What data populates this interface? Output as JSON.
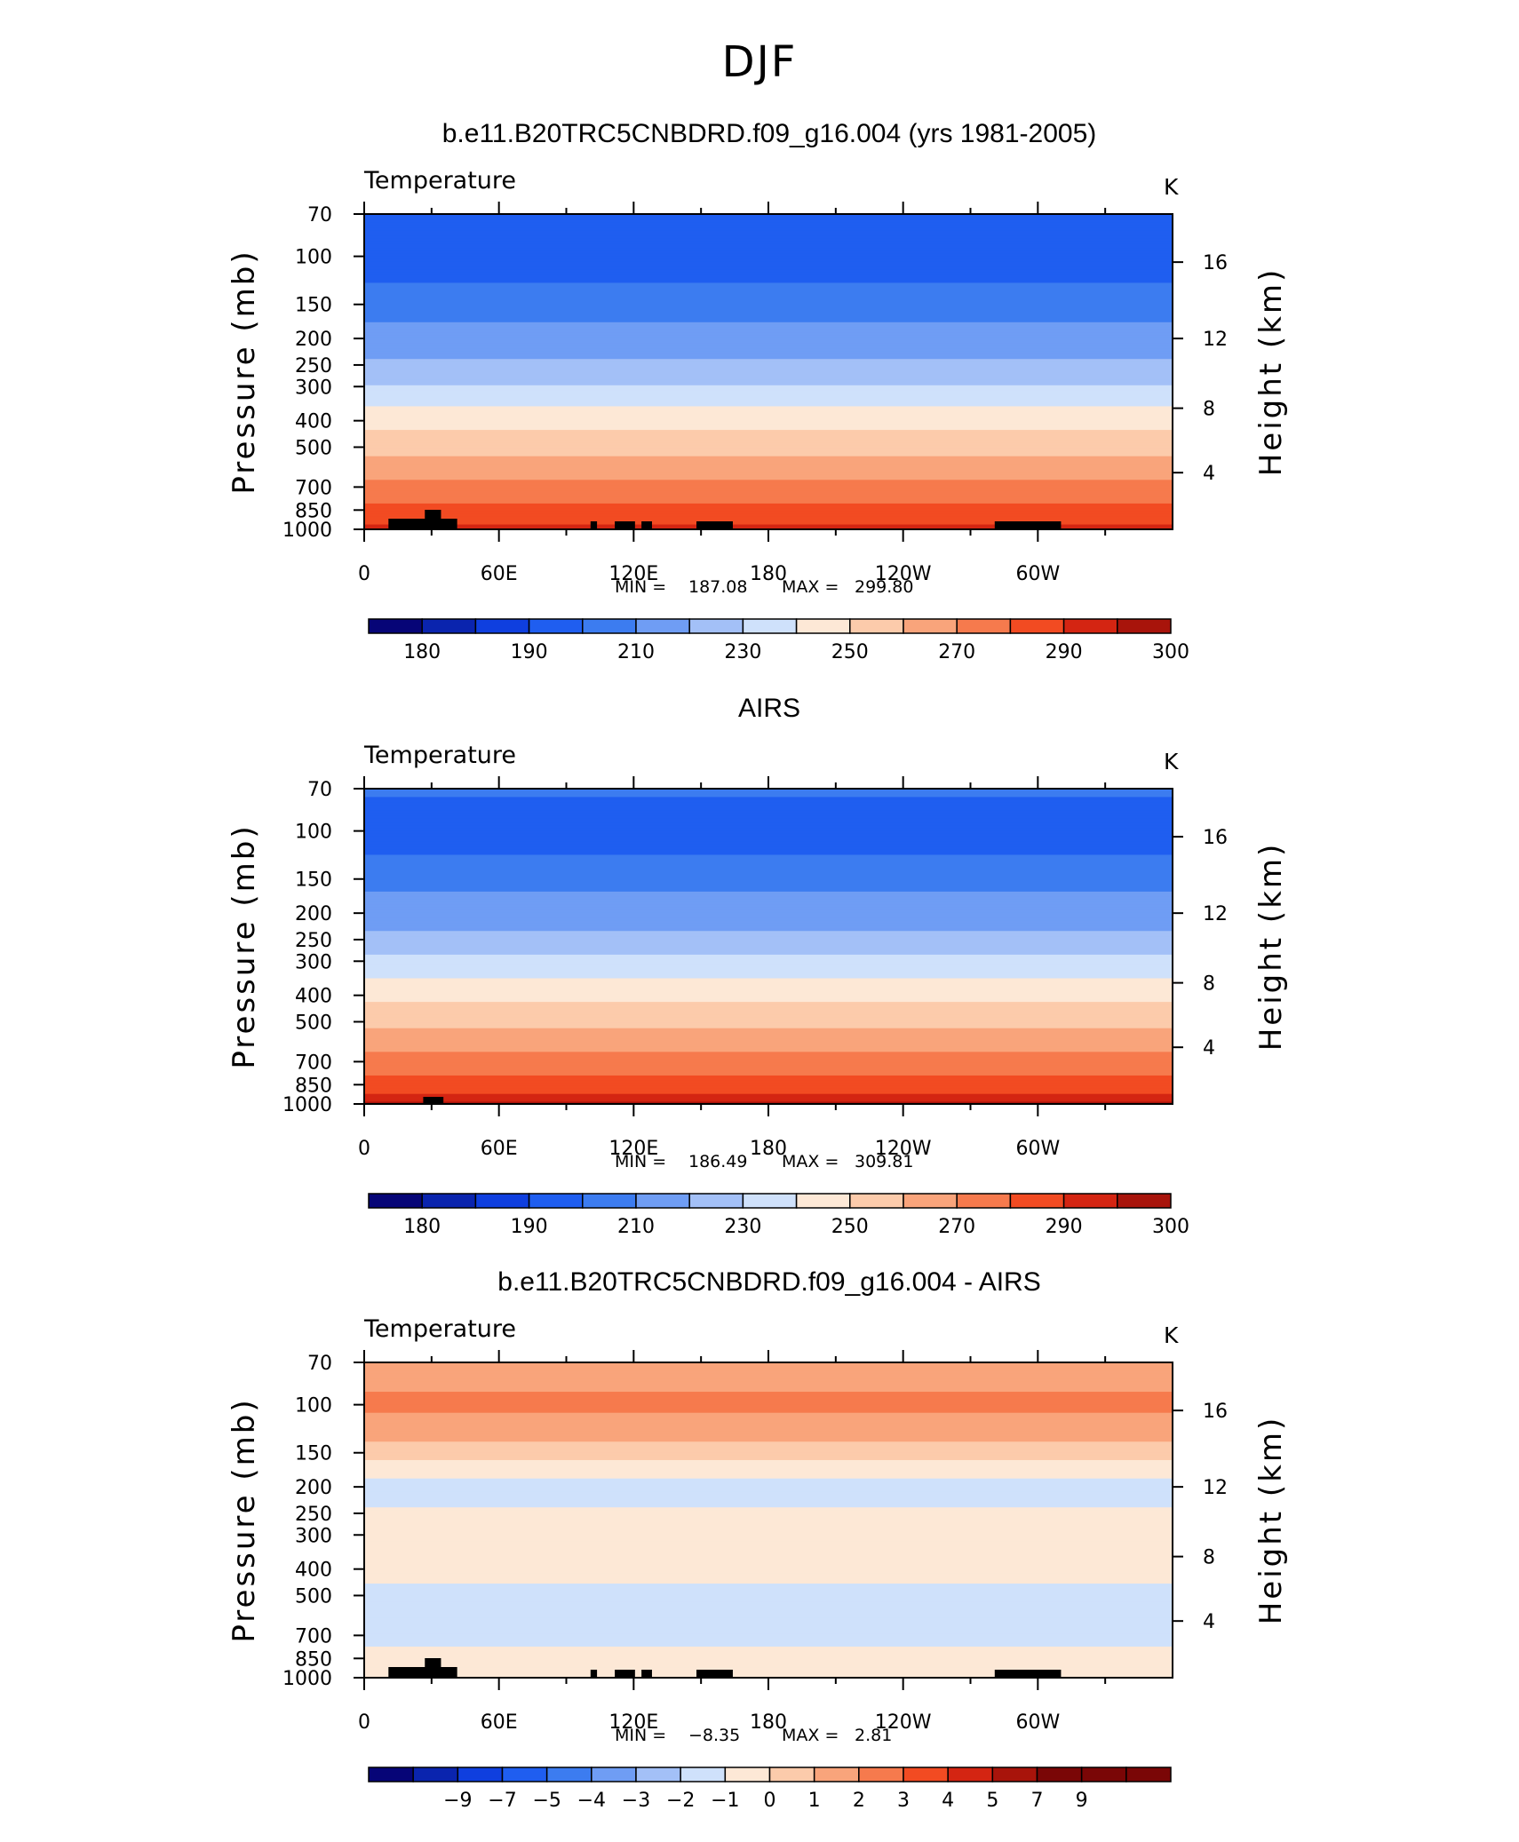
{
  "figure_title": "DJF",
  "chart_data": [
    {
      "type": "heatmap",
      "title": "b.e11.B20TRC5CNBDRD.f09_g16.004 (yrs 1981-2005)",
      "variable_label": "Temperature",
      "units": "K",
      "xlabel": "",
      "ylabel": "Pressure (mb)",
      "y2label": "Height (km)",
      "x_ticks": [
        "0",
        "60E",
        "120E",
        "180",
        "120W",
        "60W"
      ],
      "y_ticks": [
        70,
        100,
        150,
        200,
        250,
        300,
        400,
        500,
        700,
        850,
        1000
      ],
      "y2_ticks": [
        4,
        8,
        12,
        16
      ],
      "ylim": [
        1000,
        70
      ],
      "y_scale": "log",
      "stats": {
        "min_label": "MIN =",
        "min": "187.08",
        "max_label": "MAX =",
        "max": "299.80"
      },
      "colorbar": {
        "levels": [
          175,
          180,
          185,
          190,
          200,
          210,
          220,
          230,
          240,
          250,
          260,
          270,
          280,
          290,
          295,
          300
        ],
        "labels": [
          "180",
          "190",
          "210",
          "230",
          "250",
          "270",
          "290",
          "300"
        ]
      },
      "profile": [
        {
          "p": 70,
          "t": 200
        },
        {
          "p": 100,
          "t": 196
        },
        {
          "p": 130,
          "t": 201
        },
        {
          "p": 150,
          "t": 206
        },
        {
          "p": 200,
          "t": 214
        },
        {
          "p": 250,
          "t": 222
        },
        {
          "p": 300,
          "t": 231
        },
        {
          "p": 400,
          "t": 246
        },
        {
          "p": 500,
          "t": 257
        },
        {
          "p": 700,
          "t": 273
        },
        {
          "p": 850,
          "t": 283
        },
        {
          "p": 1000,
          "t": 293
        }
      ]
    },
    {
      "type": "heatmap",
      "title": "AIRS",
      "variable_label": "Temperature",
      "units": "K",
      "xlabel": "",
      "ylabel": "Pressure (mb)",
      "y2label": "Height (km)",
      "x_ticks": [
        "0",
        "60E",
        "120E",
        "180",
        "120W",
        "60W"
      ],
      "y_ticks": [
        70,
        100,
        150,
        200,
        250,
        300,
        400,
        500,
        700,
        850,
        1000
      ],
      "y2_ticks": [
        4,
        8,
        12,
        16
      ],
      "ylim": [
        1000,
        70
      ],
      "y_scale": "log",
      "stats": {
        "min_label": "MIN =",
        "min": "186.49",
        "max_label": "MAX =",
        "max": "309.81"
      },
      "colorbar": {
        "levels": [
          175,
          180,
          185,
          190,
          200,
          210,
          220,
          230,
          240,
          250,
          260,
          270,
          280,
          290,
          295,
          300
        ],
        "labels": [
          "180",
          "190",
          "210",
          "230",
          "250",
          "270",
          "290",
          "300"
        ]
      },
      "profile": [
        {
          "p": 70,
          "t": 201
        },
        {
          "p": 100,
          "t": 195
        },
        {
          "p": 130,
          "t": 202
        },
        {
          "p": 150,
          "t": 207
        },
        {
          "p": 200,
          "t": 215
        },
        {
          "p": 250,
          "t": 223
        },
        {
          "p": 300,
          "t": 233
        },
        {
          "p": 400,
          "t": 248
        },
        {
          "p": 500,
          "t": 258
        },
        {
          "p": 700,
          "t": 274
        },
        {
          "p": 850,
          "t": 285
        },
        {
          "p": 1000,
          "t": 296
        }
      ]
    },
    {
      "type": "heatmap",
      "title": "b.e11.B20TRC5CNBDRD.f09_g16.004 - AIRS",
      "variable_label": "Temperature",
      "units": "K",
      "xlabel": "",
      "ylabel": "Pressure (mb)",
      "y2label": "Height (km)",
      "x_ticks": [
        "0",
        "60E",
        "120E",
        "180",
        "120W",
        "60W"
      ],
      "y_ticks": [
        70,
        100,
        150,
        200,
        250,
        300,
        400,
        500,
        700,
        850,
        1000
      ],
      "y2_ticks": [
        4,
        8,
        12,
        16
      ],
      "ylim": [
        1000,
        70
      ],
      "y_scale": "log",
      "stats": {
        "min_label": "MIN =",
        "min": "-8.35",
        "max_label": "MAX =",
        "max": "2.81"
      },
      "colorbar": {
        "levels": [
          -10,
          -9,
          -8,
          -7,
          -6,
          -5,
          -4,
          -3,
          -2,
          -1,
          0,
          1,
          2,
          3,
          4,
          5,
          7,
          9,
          10
        ],
        "labels": [
          "-9",
          "-7",
          "-5",
          "-4",
          "-3",
          "-2",
          "-1",
          "0",
          "1",
          "2",
          "3",
          "4",
          "5",
          "7",
          "9"
        ]
      },
      "profile": [
        {
          "p": 70,
          "t": 0.5
        },
        {
          "p": 100,
          "t": 1.2
        },
        {
          "p": 130,
          "t": 0.3
        },
        {
          "p": 150,
          "t": -0.6
        },
        {
          "p": 200,
          "t": -2.5
        },
        {
          "p": 250,
          "t": -1.8
        },
        {
          "p": 300,
          "t": -1.3
        },
        {
          "p": 400,
          "t": -1.7
        },
        {
          "p": 500,
          "t": -2.3
        },
        {
          "p": 700,
          "t": -2.4
        },
        {
          "p": 850,
          "t": -1.6
        },
        {
          "p": 1000,
          "t": -1.2
        }
      ]
    }
  ],
  "palette": [
    "#060577",
    "#0a24ae",
    "#0f3fdf",
    "#1f5ef0",
    "#3c7cf0",
    "#6f9df4",
    "#a3c0f7",
    "#cfe1fb",
    "#fde8d6",
    "#fccbab",
    "#f9a47b",
    "#f67a4d",
    "#f24b22",
    "#d42512",
    "#a8140b",
    "#7a0606"
  ],
  "land_color": "#000000"
}
